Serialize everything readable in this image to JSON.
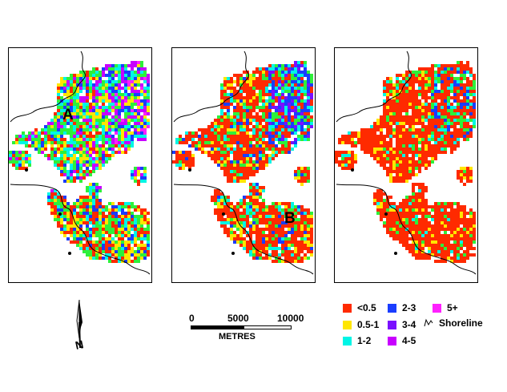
{
  "panels": [
    {
      "id": "left",
      "label": "A",
      "profile": "mixed"
    },
    {
      "id": "middle",
      "label": "B",
      "profile": "mostlyRed"
    },
    {
      "id": "right",
      "label": "",
      "profile": "red"
    }
  ],
  "legend": {
    "items": [
      {
        "label": "<0.5",
        "color": "#ff2a00"
      },
      {
        "label": "0.5-1",
        "color": "#ffe600"
      },
      {
        "label": "1-2",
        "color": "#00f5e6"
      },
      {
        "label": "2-3",
        "color": "#1a3dff"
      },
      {
        "label": "3-4",
        "color": "#7a10ff"
      },
      {
        "label": "4-5",
        "color": "#c800ff"
      },
      {
        "label": "5+",
        "color": "#ff20ff"
      }
    ],
    "shoreline_label": "Shoreline",
    "green_color": "#2ef03a"
  },
  "scale": {
    "ticks": [
      "0",
      "5000",
      "10000"
    ],
    "unit": "METRES"
  },
  "north_arrow": {
    "label": "N"
  }
}
